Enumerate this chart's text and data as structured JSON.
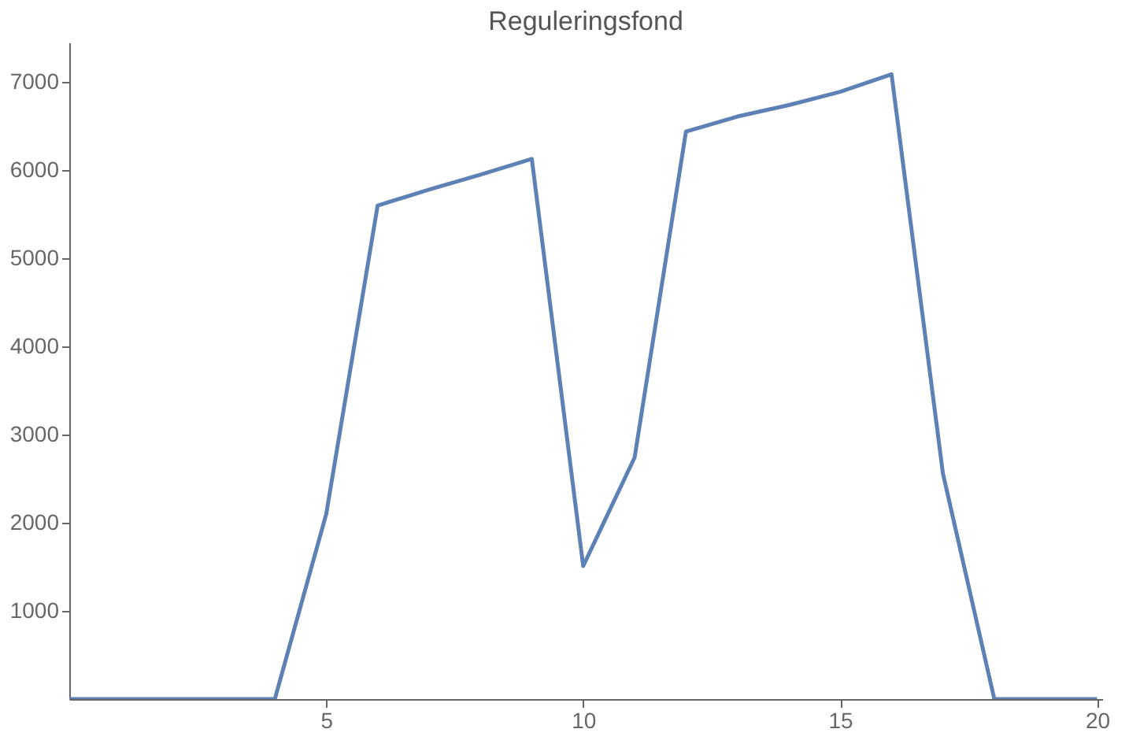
{
  "chart_data": {
    "type": "line",
    "title": "Reguleringsfond",
    "x": [
      0,
      1,
      2,
      3,
      4,
      5,
      6,
      7,
      8,
      9,
      10,
      11,
      12,
      13,
      14,
      15,
      16,
      17,
      18,
      19,
      20
    ],
    "series": [
      {
        "color": "#5e81b5",
        "values": [
          0,
          0,
          0,
          0,
          0,
          2100,
          5600,
          5780,
          5950,
          6130,
          1510,
          2740,
          6440,
          6610,
          6740,
          6890,
          7090,
          2560,
          0,
          0,
          0
        ]
      }
    ],
    "xlim": [
      0,
      20.1
    ],
    "xticks": [
      5,
      10,
      15,
      20
    ],
    "ylim": [
      0,
      7450
    ],
    "yticks": [
      1000,
      2000,
      3000,
      4000,
      5000,
      6000,
      7000
    ],
    "grid": false,
    "legend": false,
    "marker": "none",
    "line_style": "solid"
  }
}
